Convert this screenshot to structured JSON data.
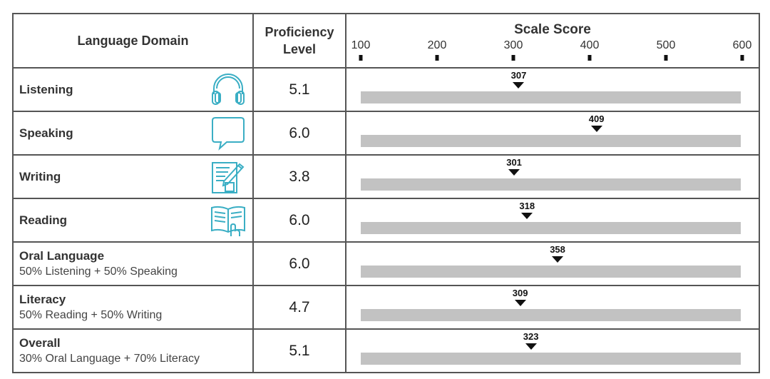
{
  "header": {
    "domain": "Language Domain",
    "level_line1": "Proficiency",
    "level_line2": "Level",
    "scale": "Scale Score"
  },
  "chart_data": {
    "type": "table",
    "xlim": [
      100,
      600
    ],
    "ticks": [
      "100",
      "200",
      "300",
      "400",
      "500",
      "600"
    ],
    "tick_values": [
      100,
      200,
      300,
      400,
      500,
      600
    ],
    "rows": [
      {
        "name": "Listening",
        "sub": "",
        "icon": "headphones-icon",
        "level": "5.1",
        "score": 307,
        "score_label": "307"
      },
      {
        "name": "Speaking",
        "sub": "",
        "icon": "speech-bubble-icon",
        "level": "6.0",
        "score": 409,
        "score_label": "409"
      },
      {
        "name": "Writing",
        "sub": "",
        "icon": "writing-pencil-icon",
        "level": "3.8",
        "score": 301,
        "score_label": "301"
      },
      {
        "name": "Reading",
        "sub": "",
        "icon": "open-book-icon",
        "level": "6.0",
        "score": 318,
        "score_label": "318"
      },
      {
        "name": "Oral Language",
        "sub": "50% Listening + 50% Speaking",
        "icon": "",
        "level": "6.0",
        "score": 358,
        "score_label": "358"
      },
      {
        "name": "Literacy",
        "sub": "50% Reading + 50% Writing",
        "icon": "",
        "level": "4.7",
        "score": 309,
        "score_label": "309"
      },
      {
        "name": "Overall",
        "sub": "30% Oral Language + 70% Literacy",
        "icon": "",
        "level": "5.1",
        "score": 323,
        "score_label": "323"
      }
    ]
  },
  "colors": {
    "icon": "#3aaec4",
    "bar": "#c2c2c2",
    "marker": "#111111",
    "border": "#555555"
  }
}
